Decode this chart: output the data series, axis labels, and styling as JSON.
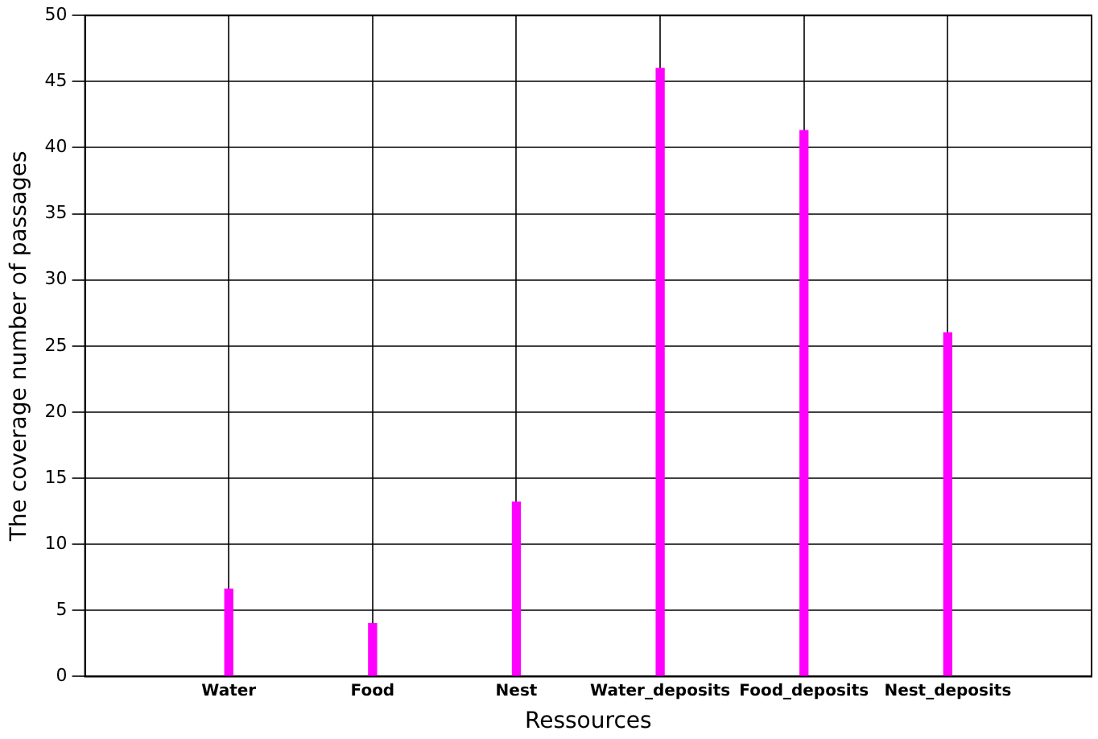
{
  "chart_data": {
    "type": "bar",
    "xlabel": "Ressources",
    "ylabel": "The coverage number of passages",
    "categories": [
      "Water",
      "Food",
      "Nest",
      "Water_deposits",
      "Food_deposits",
      "Nest_deposits"
    ],
    "values": [
      6.6,
      4.0,
      13.2,
      46.0,
      41.3,
      26.0
    ],
    "color": "#ff00ff",
    "ylim": [
      0,
      50
    ],
    "yticks": [
      0,
      5,
      10,
      15,
      20,
      25,
      30,
      35,
      40,
      45,
      50
    ],
    "grid": true,
    "legend": false
  }
}
